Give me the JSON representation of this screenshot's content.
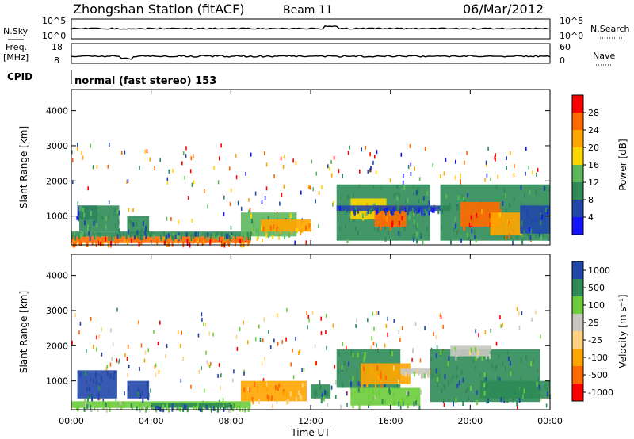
{
  "header": {
    "title": "Zhongshan Station (fitACF)",
    "beam": "Beam 11",
    "date": "06/Mar/2012"
  },
  "strips": {
    "nsky_label": "N.Sky",
    "nsearch_label": "N.Search",
    "noise_ticks": [
      "10^5",
      "10^0"
    ],
    "freq_label_1": "Freq.",
    "freq_label_2": "[MHz]",
    "freq_ticks": [
      "18",
      "8"
    ],
    "nave_label": "Nave",
    "nave_ticks": [
      "60",
      "0"
    ],
    "cpid_label": "CPID",
    "cpid_value": "normal (fast stereo) 153"
  },
  "colors": {
    "power": [
      "#1414ff",
      "#2147a8",
      "#2e8b57",
      "#5db85d",
      "#ffd700",
      "#ffa500",
      "#ff6a00",
      "#ff0000"
    ],
    "velocity": [
      "#ff0000",
      "#ff6a00",
      "#ffa500",
      "#ffd27f",
      "#c8c8c0",
      "#6ccc3a",
      "#2e8b57",
      "#2147a8"
    ]
  },
  "chart_data": [
    {
      "type": "heatmap",
      "quantity": "Power",
      "ylabel": "Slant Range [km]",
      "colorbar_label": "Power [dB]",
      "colorbar_ticks": [
        "28",
        "24",
        "20",
        "16",
        "12",
        "8",
        "4"
      ],
      "ylim": [
        180,
        4600
      ],
      "yticks": [
        "1000",
        "2000",
        "3000",
        "4000"
      ],
      "xticks": [
        "00:00",
        "04:00",
        "08:00",
        "12:00",
        "16:00",
        "20:00",
        "00:00"
      ],
      "xlim_hours": [
        0,
        24
      ],
      "patches": [
        {
          "t0": 0.0,
          "t1": 9.0,
          "r0": 230,
          "r1": 420,
          "class": 6
        },
        {
          "t0": 0.0,
          "t1": 9.0,
          "r0": 420,
          "r1": 560,
          "class": 2
        },
        {
          "t0": 0.3,
          "t1": 1.3,
          "r0": 900,
          "r1": 1300,
          "class": 1
        },
        {
          "t0": 0.4,
          "t1": 2.4,
          "r0": 560,
          "r1": 1300,
          "class": 2
        },
        {
          "t0": 2.8,
          "t1": 3.9,
          "r0": 500,
          "r1": 1000,
          "class": 2
        },
        {
          "t0": 8.5,
          "t1": 11.3,
          "r0": 420,
          "r1": 1100,
          "class": 3
        },
        {
          "t0": 9.5,
          "t1": 12.0,
          "r0": 560,
          "r1": 900,
          "class": 5
        },
        {
          "t0": 13.3,
          "t1": 18.0,
          "r0": 300,
          "r1": 1900,
          "class": 2
        },
        {
          "t0": 14.0,
          "t1": 15.8,
          "r0": 900,
          "r1": 1500,
          "class": 4
        },
        {
          "t0": 15.2,
          "t1": 16.8,
          "r0": 700,
          "r1": 1300,
          "class": 6
        },
        {
          "t0": 13.3,
          "t1": 19.0,
          "r0": 1150,
          "r1": 1300,
          "class": 1
        },
        {
          "t0": 18.5,
          "t1": 24.0,
          "r0": 300,
          "r1": 1900,
          "class": 2
        },
        {
          "t0": 19.5,
          "t1": 21.5,
          "r0": 700,
          "r1": 1400,
          "class": 6
        },
        {
          "t0": 21.0,
          "t1": 22.5,
          "r0": 450,
          "r1": 1100,
          "class": 5
        },
        {
          "t0": 22.5,
          "t1": 24.0,
          "r0": 500,
          "r1": 1300,
          "class": 1
        }
      ]
    },
    {
      "type": "heatmap",
      "quantity": "Velocity",
      "ylabel": "Slant Range [km]",
      "colorbar_label": "Velocity [m s^-1]",
      "colorbar_ticks": [
        "1000",
        "500",
        "100",
        "25",
        "-25",
        "-100",
        "-500",
        "-1000"
      ],
      "ylim": [
        180,
        4600
      ],
      "yticks": [
        "1000",
        "2000",
        "3000",
        "4000"
      ],
      "xticks": [
        "00:00",
        "04:00",
        "08:00",
        "12:00",
        "16:00",
        "20:00",
        "00:00"
      ],
      "xlabel": "Time UT",
      "xlim_hours": [
        0,
        24
      ],
      "patches": [
        {
          "t0": 0.0,
          "t1": 9.0,
          "r0": 230,
          "r1": 420,
          "class": 5
        },
        {
          "t0": 0.3,
          "t1": 2.3,
          "r0": 500,
          "r1": 1300,
          "class": 7
        },
        {
          "t0": 2.8,
          "t1": 3.9,
          "r0": 500,
          "r1": 1000,
          "class": 7
        },
        {
          "t0": 4.0,
          "t1": 8.0,
          "r0": 240,
          "r1": 380,
          "class": 6
        },
        {
          "t0": 8.5,
          "t1": 11.8,
          "r0": 420,
          "r1": 1000,
          "class": 2
        },
        {
          "t0": 12.0,
          "t1": 13.0,
          "r0": 500,
          "r1": 900,
          "class": 6
        },
        {
          "t0": 13.3,
          "t1": 16.5,
          "r0": 800,
          "r1": 1900,
          "class": 6
        },
        {
          "t0": 14.5,
          "t1": 17.0,
          "r0": 900,
          "r1": 1500,
          "class": 2
        },
        {
          "t0": 14.0,
          "t1": 17.5,
          "r0": 300,
          "r1": 800,
          "class": 5
        },
        {
          "t0": 16.5,
          "t1": 18.5,
          "r0": 1200,
          "r1": 1350,
          "class": 4
        },
        {
          "t0": 18.0,
          "t1": 23.5,
          "r0": 400,
          "r1": 1900,
          "class": 6
        },
        {
          "t0": 19.0,
          "t1": 21.0,
          "r0": 1700,
          "r1": 2000,
          "class": 4
        },
        {
          "t0": 20.5,
          "t1": 24.0,
          "r0": 500,
          "r1": 1000,
          "class": 6
        }
      ]
    }
  ]
}
